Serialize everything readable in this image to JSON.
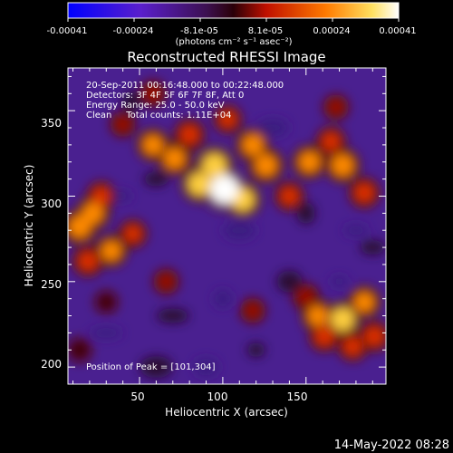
{
  "colorbar": {
    "tick_labels": [
      "-0.00041",
      "-0.00024",
      "-8.1e-05",
      "8.1e-05",
      "0.00024",
      "0.00041"
    ],
    "unit_label": "(photons cm⁻² s⁻¹ asec⁻²)",
    "range": [
      -0.00041,
      0.00041
    ],
    "colors": [
      "#0000ff",
      "#6020c0",
      "#400010",
      "#cc1000",
      "#ff7a00",
      "#ffe060",
      "#ffffff"
    ]
  },
  "title": "Reconstructed RHESSI Image",
  "info_lines": [
    "20-Sep-2011 00:16:48.000 to 00:22:48.000",
    "Detectors: 3F 4F 5F 6F 7F 8F, Att 0",
    "Energy Range: 25.0 - 50.0 keV",
    "Clean     Total counts: 1.11E+04"
  ],
  "peak_text": "Position of Peak = [101,304]",
  "x_axis": {
    "label": "Heliocentric X (arcsec)",
    "ticks": [
      "50",
      "100",
      "150"
    ],
    "range": [
      7,
      198
    ]
  },
  "y_axis": {
    "label": "Heliocentric Y (arcsec)",
    "ticks": [
      "200",
      "250",
      "300",
      "350"
    ],
    "range": [
      190,
      375
    ]
  },
  "timestamp": "14-May-2022 08:28",
  "image_blobs": [
    {
      "x": 101,
      "y": 304,
      "v": 1.0
    },
    {
      "x": 95,
      "y": 318,
      "v": 0.75
    },
    {
      "x": 112,
      "y": 298,
      "v": 0.7
    },
    {
      "x": 86,
      "y": 307,
      "v": 0.7
    },
    {
      "x": 71,
      "y": 322,
      "v": 0.6
    },
    {
      "x": 58,
      "y": 330,
      "v": 0.55
    },
    {
      "x": 118,
      "y": 330,
      "v": 0.6
    },
    {
      "x": 126,
      "y": 318,
      "v": 0.65
    },
    {
      "x": 80,
      "y": 336,
      "v": 0.5
    },
    {
      "x": 103,
      "y": 345,
      "v": 0.4
    },
    {
      "x": 140,
      "y": 300,
      "v": 0.45
    },
    {
      "x": 152,
      "y": 320,
      "v": 0.6
    },
    {
      "x": 172,
      "y": 318,
      "v": 0.65
    },
    {
      "x": 185,
      "y": 302,
      "v": 0.5
    },
    {
      "x": 165,
      "y": 332,
      "v": 0.45
    },
    {
      "x": 22,
      "y": 290,
      "v": 0.6
    },
    {
      "x": 14,
      "y": 282,
      "v": 0.65
    },
    {
      "x": 33,
      "y": 268,
      "v": 0.55
    },
    {
      "x": 19,
      "y": 262,
      "v": 0.5
    },
    {
      "x": 46,
      "y": 278,
      "v": 0.4
    },
    {
      "x": 27,
      "y": 300,
      "v": 0.45
    },
    {
      "x": 157,
      "y": 230,
      "v": 0.55
    },
    {
      "x": 172,
      "y": 228,
      "v": 0.7
    },
    {
      "x": 185,
      "y": 238,
      "v": 0.55
    },
    {
      "x": 161,
      "y": 218,
      "v": 0.5
    },
    {
      "x": 191,
      "y": 218,
      "v": 0.5
    },
    {
      "x": 178,
      "y": 212,
      "v": 0.45
    },
    {
      "x": 150,
      "y": 241,
      "v": 0.35
    },
    {
      "x": 58,
      "y": 360,
      "v": 0.35
    },
    {
      "x": 40,
      "y": 342,
      "v": 0.3
    },
    {
      "x": 118,
      "y": 233,
      "v": 0.3
    },
    {
      "x": 66,
      "y": 250,
      "v": 0.3
    },
    {
      "x": 14,
      "y": 210,
      "v": 0.25
    },
    {
      "x": 30,
      "y": 238,
      "v": 0.2
    },
    {
      "x": 168,
      "y": 352,
      "v": 0.3
    }
  ]
}
